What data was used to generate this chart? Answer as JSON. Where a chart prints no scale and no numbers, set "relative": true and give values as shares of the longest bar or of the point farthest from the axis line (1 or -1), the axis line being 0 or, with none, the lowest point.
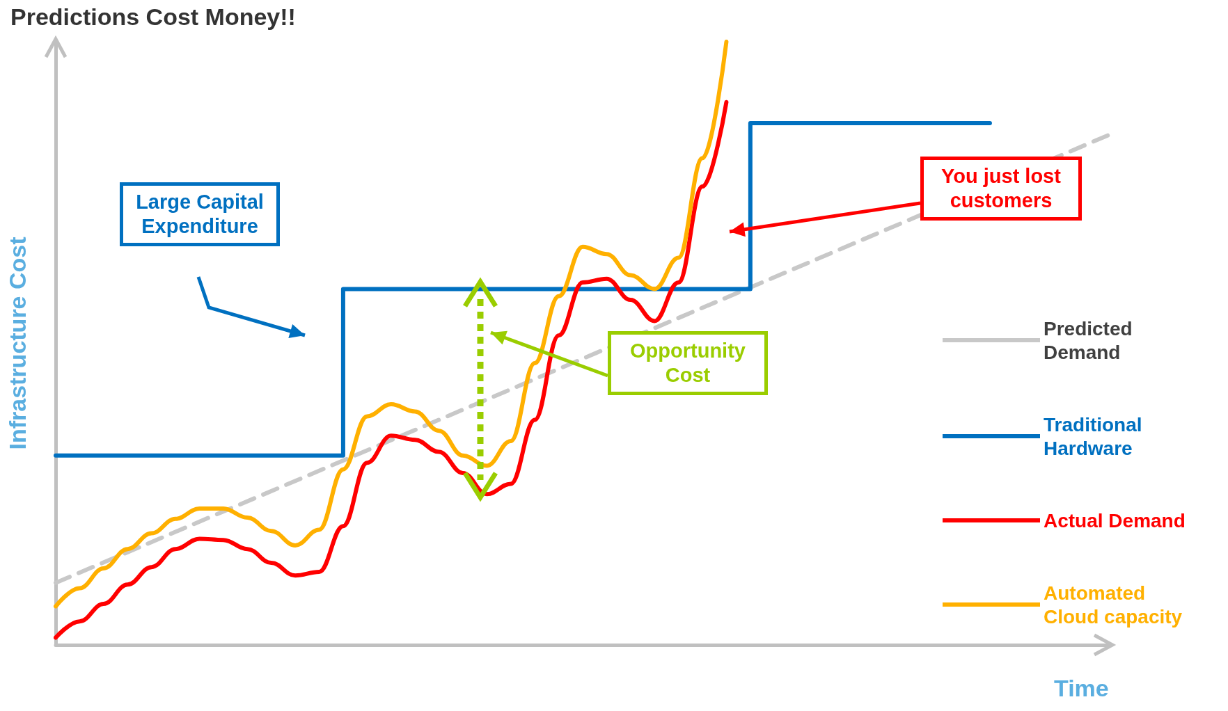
{
  "chart_data": {
    "type": "line",
    "title": "Predictions Cost Money!!",
    "xlabel": "Time",
    "ylabel": "Infrastructure Cost",
    "relative": true,
    "legend": "right",
    "grid": false,
    "marker": "none",
    "categories": [
      null,
      null,
      null,
      null,
      null,
      null,
      null,
      null,
      null,
      null,
      null,
      null,
      null,
      null,
      null,
      null,
      null,
      null,
      null,
      null,
      null,
      null,
      null,
      null,
      null,
      null,
      null,
      null,
      null,
      null,
      null,
      null,
      null,
      null,
      null,
      null,
      null,
      null,
      null,
      null,
      null,
      null,
      null,
      null,
      null
    ],
    "annotations": [
      "Large Capital Expenditure",
      "Opportunity Cost",
      "You just lost customers"
    ],
    "series": [
      {
        "name": "Predicted Demand",
        "color": "#c8c8c8",
        "line_style": "dashed",
        "values": [
          0.103,
          null,
          null,
          null,
          null,
          null,
          null,
          null,
          null,
          null,
          null,
          null,
          null,
          null,
          null,
          null,
          null,
          null,
          null,
          null,
          null,
          null,
          null,
          null,
          null,
          null,
          null,
          null,
          null,
          null,
          null,
          null,
          null,
          null,
          null,
          null,
          null,
          null,
          null,
          null,
          null,
          null,
          null,
          null,
          0.846
        ]
      },
      {
        "name": "Traditional Hardware",
        "type": "step",
        "color": "#0070c0",
        "values": [
          0.314,
          0.314,
          0.314,
          0.314,
          0.314,
          0.314,
          0.314,
          0.314,
          0.314,
          0.314,
          0.314,
          0.314,
          0.59,
          0.59,
          0.59,
          0.59,
          0.59,
          0.59,
          0.59,
          0.59,
          0.59,
          0.59,
          0.59,
          0.59,
          0.59,
          0.59,
          0.59,
          0.59,
          0.59,
          0.865,
          0.865,
          0.865,
          0.865,
          0.865,
          0.865,
          0.865,
          0.865,
          0.865,
          0.865,
          0.865,
          null,
          null,
          null,
          null,
          null
        ]
      },
      {
        "name": "Actual Demand",
        "color": "#ff0000",
        "values": [
          0.012,
          0.039,
          0.068,
          0.1,
          0.129,
          0.159,
          0.176,
          0.174,
          0.159,
          0.136,
          0.115,
          0.121,
          0.197,
          0.302,
          0.347,
          0.34,
          0.32,
          0.285,
          0.25,
          0.267,
          0.373,
          0.513,
          0.601,
          0.607,
          0.572,
          0.537,
          0.601,
          0.76,
          0.9,
          null,
          null,
          null,
          null,
          null,
          null,
          null,
          null,
          null,
          null,
          null,
          null,
          null,
          null,
          null,
          null
        ]
      },
      {
        "name": "Automated Cloud capacity",
        "color": "#ffb000",
        "values": [
          0.064,
          0.094,
          0.127,
          0.159,
          0.185,
          0.209,
          0.226,
          0.226,
          0.211,
          0.189,
          0.165,
          0.191,
          0.291,
          0.379,
          0.399,
          0.387,
          0.355,
          0.314,
          0.297,
          0.338,
          0.467,
          0.578,
          0.66,
          0.648,
          0.613,
          0.59,
          0.642,
          0.807,
          1,
          null,
          null,
          null,
          null,
          null,
          null,
          null,
          null,
          null,
          null,
          null,
          null,
          null,
          null,
          null,
          null
        ]
      }
    ]
  }
}
